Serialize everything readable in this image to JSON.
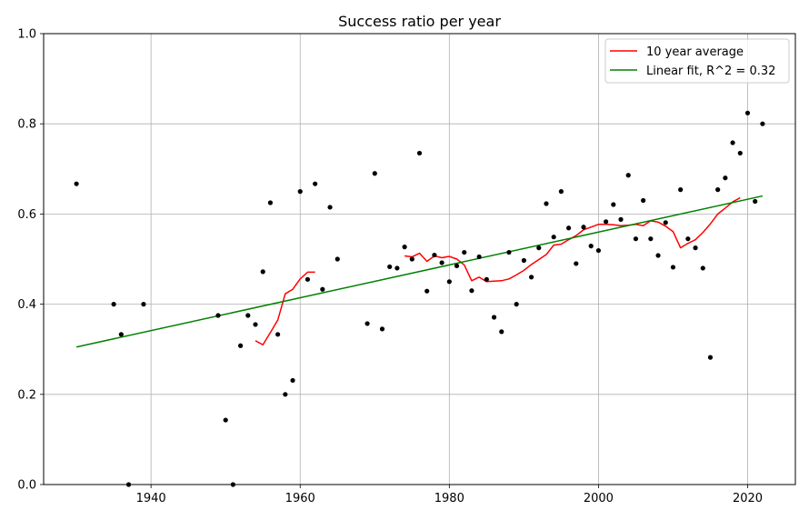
{
  "chart_data": {
    "type": "scatter",
    "title": "Success ratio per year",
    "xlabel": "",
    "ylabel": "",
    "xlim": [
      1925.6,
      2026.4
    ],
    "ylim": [
      0,
      1
    ],
    "x_ticks": [
      1940,
      1960,
      1980,
      2000,
      2020
    ],
    "y_ticks": [
      0.0,
      0.2,
      0.4,
      0.6,
      0.8,
      1.0
    ],
    "x_tick_labels": [
      "1940",
      "1960",
      "1980",
      "2000",
      "2020"
    ],
    "y_tick_labels": [
      "0.0",
      "0.2",
      "0.4",
      "0.6",
      "0.8",
      "1.0"
    ],
    "grid": true,
    "legend_position": "top-right",
    "colors": {
      "points": "#000000",
      "average": "#ff0000",
      "fit": "#008000",
      "grid": "#b0b0b0"
    },
    "points": {
      "x": [
        1930,
        1935,
        1936,
        1937,
        1939,
        1949,
        1950,
        1951,
        1952,
        1953,
        1954,
        1955,
        1956,
        1957,
        1958,
        1959,
        1960,
        1961,
        1962,
        1963,
        1964,
        1965,
        1969,
        1970,
        1971,
        1972,
        1973,
        1974,
        1975,
        1976,
        1977,
        1978,
        1979,
        1980,
        1981,
        1982,
        1983,
        1984,
        1985,
        1986,
        1987,
        1988,
        1989,
        1990,
        1991,
        1992,
        1993,
        1994,
        1995,
        1996,
        1997,
        1998,
        1999,
        2000,
        2001,
        2002,
        2003,
        2004,
        2005,
        2006,
        2007,
        2008,
        2009,
        2010,
        2011,
        2012,
        2013,
        2014,
        2015,
        2016,
        2017,
        2018,
        2019,
        2020,
        2021,
        2022
      ],
      "y": [
        0.667,
        0.4,
        0.333,
        0.0,
        0.4,
        0.375,
        0.143,
        0.0,
        0.308,
        0.375,
        0.355,
        0.472,
        0.625,
        0.333,
        0.2,
        0.231,
        0.65,
        0.455,
        0.667,
        0.433,
        0.615,
        0.5,
        0.357,
        0.69,
        0.345,
        0.483,
        0.48,
        0.527,
        0.5,
        0.735,
        0.429,
        0.509,
        0.492,
        0.45,
        0.485,
        0.515,
        0.43,
        0.505,
        0.455,
        0.371,
        0.339,
        0.515,
        0.4,
        0.497,
        0.46,
        0.525,
        0.623,
        0.549,
        0.65,
        0.569,
        0.49,
        0.571,
        0.529,
        0.519,
        0.583,
        0.621,
        0.588,
        0.686,
        0.545,
        0.63,
        0.545,
        0.508,
        0.581,
        0.482,
        0.654,
        0.545,
        0.525,
        0.48,
        0.282,
        0.654,
        0.68,
        0.758,
        0.735,
        0.824,
        0.628,
        0.8
      ]
    },
    "series": [
      {
        "name": "10 year average",
        "x": [
          1954,
          1955,
          1956,
          1957,
          1958,
          1959,
          1960,
          1961,
          1962
        ],
        "y": [
          0.319,
          0.31,
          0.337,
          0.365,
          0.423,
          0.433,
          0.456,
          0.471,
          0.471
        ]
      },
      {
        "name": "10 year average",
        "x": [
          1974,
          1975,
          1976,
          1977,
          1978,
          1979,
          1980,
          1981,
          1982,
          1983,
          1984,
          1985,
          1986,
          1987,
          1988,
          1989,
          1990,
          1991,
          1992,
          1993,
          1994,
          1995,
          1996,
          1997,
          1998,
          1999,
          2000,
          2001,
          2002,
          2003,
          2004,
          2005,
          2006,
          2007,
          2008,
          2009,
          2010,
          2011,
          2012,
          2013,
          2014,
          2015,
          2016,
          2017,
          2018,
          2019
        ],
        "y": [
          0.507,
          0.505,
          0.513,
          0.495,
          0.507,
          0.503,
          0.506,
          0.5,
          0.487,
          0.452,
          0.46,
          0.45,
          0.451,
          0.452,
          0.456,
          0.465,
          0.475,
          0.488,
          0.499,
          0.51,
          0.531,
          0.533,
          0.543,
          0.552,
          0.565,
          0.571,
          0.577,
          0.577,
          0.576,
          0.574,
          0.575,
          0.577,
          0.574,
          0.585,
          0.582,
          0.573,
          0.561,
          0.525,
          0.535,
          0.543,
          0.559,
          0.578,
          0.6,
          0.613,
          0.627,
          0.636
        ]
      },
      {
        "name": "Linear fit, R^2 = 0.32",
        "x": [
          1930,
          2022
        ],
        "y": [
          0.305,
          0.64
        ]
      }
    ],
    "legend": [
      "10 year average",
      "Linear fit, R^2 = 0.32"
    ]
  }
}
